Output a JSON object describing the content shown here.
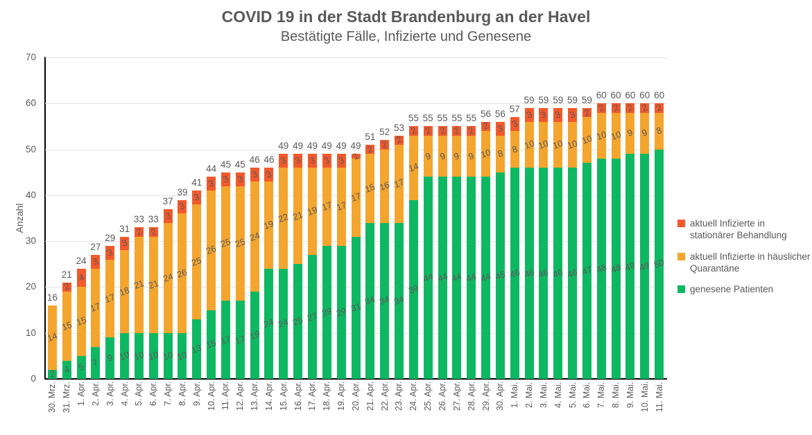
{
  "chart_data": {
    "type": "bar",
    "stacked": true,
    "title": "COVID 19 in der Stadt Brandenburg an der Havel",
    "subtitle": "Bestätigte Fälle, Infizierte und Genesene",
    "ylabel": "Anzahl",
    "xlabel": "",
    "ylim": [
      0,
      70
    ],
    "yticks": [
      0,
      10,
      20,
      30,
      40,
      50,
      60,
      70
    ],
    "grid": true,
    "legend_position": "right",
    "categories": [
      "30. Mrz.",
      "31. Mrz.",
      "1. Apr.",
      "2. Apr.",
      "3. Apr.",
      "4. Apr.",
      "5. Apr.",
      "6. Apr.",
      "7. Apr.",
      "8. Apr.",
      "9. Apr.",
      "10. Apr.",
      "11. Apr.",
      "12. Apr.",
      "13. Apr.",
      "14. Apr.",
      "15. Apr.",
      "16. Apr.",
      "17. Apr.",
      "18. Apr.",
      "19. Apr.",
      "20. Apr.",
      "21. Apr.",
      "22. Apr.",
      "23. Apr.",
      "24. Apr.",
      "25. Apr.",
      "26. Apr.",
      "27. Apr.",
      "28. Apr.",
      "29. Apr.",
      "30. Apr.",
      "1. Mai.",
      "2. Mai.",
      "3. Mai.",
      "4. Mai.",
      "5. Mai.",
      "6. Mai.",
      "7. Mai.",
      "8. Mai.",
      "9. Mai.",
      "10. Mai.",
      "11. Mai."
    ],
    "series": [
      {
        "name": "genesene Patienten",
        "color": "#0eb862",
        "values": [
          2,
          4,
          5,
          7,
          9,
          10,
          10,
          10,
          10,
          10,
          13,
          15,
          17,
          17,
          19,
          24,
          24,
          25,
          27,
          29,
          29,
          31,
          34,
          34,
          34,
          39,
          44,
          44,
          44,
          44,
          44,
          45,
          46,
          46,
          46,
          46,
          46,
          47,
          48,
          48,
          49,
          49,
          50
        ]
      },
      {
        "name": "aktuell Infizierte in häuslicher Quarantäne",
        "color": "#f4a52e",
        "values": [
          14,
          15,
          15,
          17,
          17,
          18,
          21,
          21,
          24,
          26,
          25,
          26,
          25,
          25,
          24,
          19,
          22,
          21,
          19,
          17,
          17,
          17,
          15,
          16,
          17,
          14,
          9,
          9,
          9,
          9,
          10,
          8,
          8,
          10,
          10,
          10,
          10,
          10,
          10,
          10,
          9,
          9,
          8
        ]
      },
      {
        "name": "aktuell Infizierte in stationärer Behandlung",
        "color": "#f2592b",
        "values": [
          0,
          2,
          4,
          3,
          3,
          3,
          2,
          2,
          3,
          3,
          3,
          3,
          3,
          3,
          3,
          3,
          3,
          3,
          3,
          3,
          3,
          1,
          2,
          2,
          2,
          2,
          2,
          2,
          2,
          2,
          2,
          3,
          3,
          3,
          3,
          3,
          3,
          2,
          2,
          2,
          2,
          2,
          2
        ]
      }
    ],
    "totals": [
      16,
      21,
      24,
      27,
      29,
      31,
      33,
      33,
      37,
      39,
      41,
      44,
      45,
      45,
      46,
      46,
      49,
      49,
      49,
      49,
      49,
      49,
      51,
      52,
      53,
      55,
      55,
      55,
      55,
      55,
      56,
      56,
      57,
      59,
      59,
      59,
      59,
      59,
      60,
      60,
      60,
      60,
      60
    ],
    "colors": {
      "text": "#595959",
      "grid": "#e3e3e3",
      "axis": "#000000",
      "background": "#ffffff"
    }
  }
}
